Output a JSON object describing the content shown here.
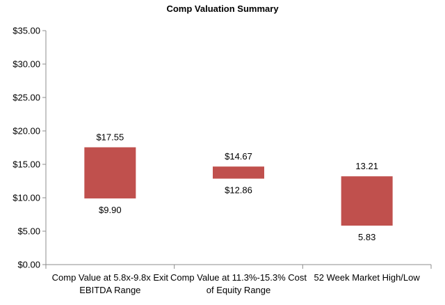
{
  "chart_data": {
    "type": "bar",
    "title": "Comp Valuation Summary",
    "xlabel": "",
    "ylabel": "",
    "ylim": [
      0,
      35
    ],
    "y_ticks": [
      "$0.00",
      "$5.00",
      "$10.00",
      "$15.00",
      "$20.00",
      "$25.00",
      "$30.00",
      "$35.00"
    ],
    "y_tick_values": [
      0,
      5,
      10,
      15,
      20,
      25,
      30,
      35
    ],
    "categories": [
      [
        "Comp Value at 5.8x-9.8x Exit",
        "EBITDA Range"
      ],
      [
        "Comp Value at 11.3%-15.3% Cost",
        "of Equity Range"
      ],
      [
        "52 Week Market High/Low"
      ]
    ],
    "series": [
      {
        "low": [
          9.9,
          12.86,
          5.83
        ],
        "high": [
          17.55,
          14.67,
          13.21
        ],
        "low_labels": [
          "$9.90",
          "$12.86",
          "5.83"
        ],
        "high_labels": [
          "$17.55",
          "$14.67",
          "13.21"
        ],
        "color": "#c0504d"
      }
    ],
    "grid": false
  }
}
